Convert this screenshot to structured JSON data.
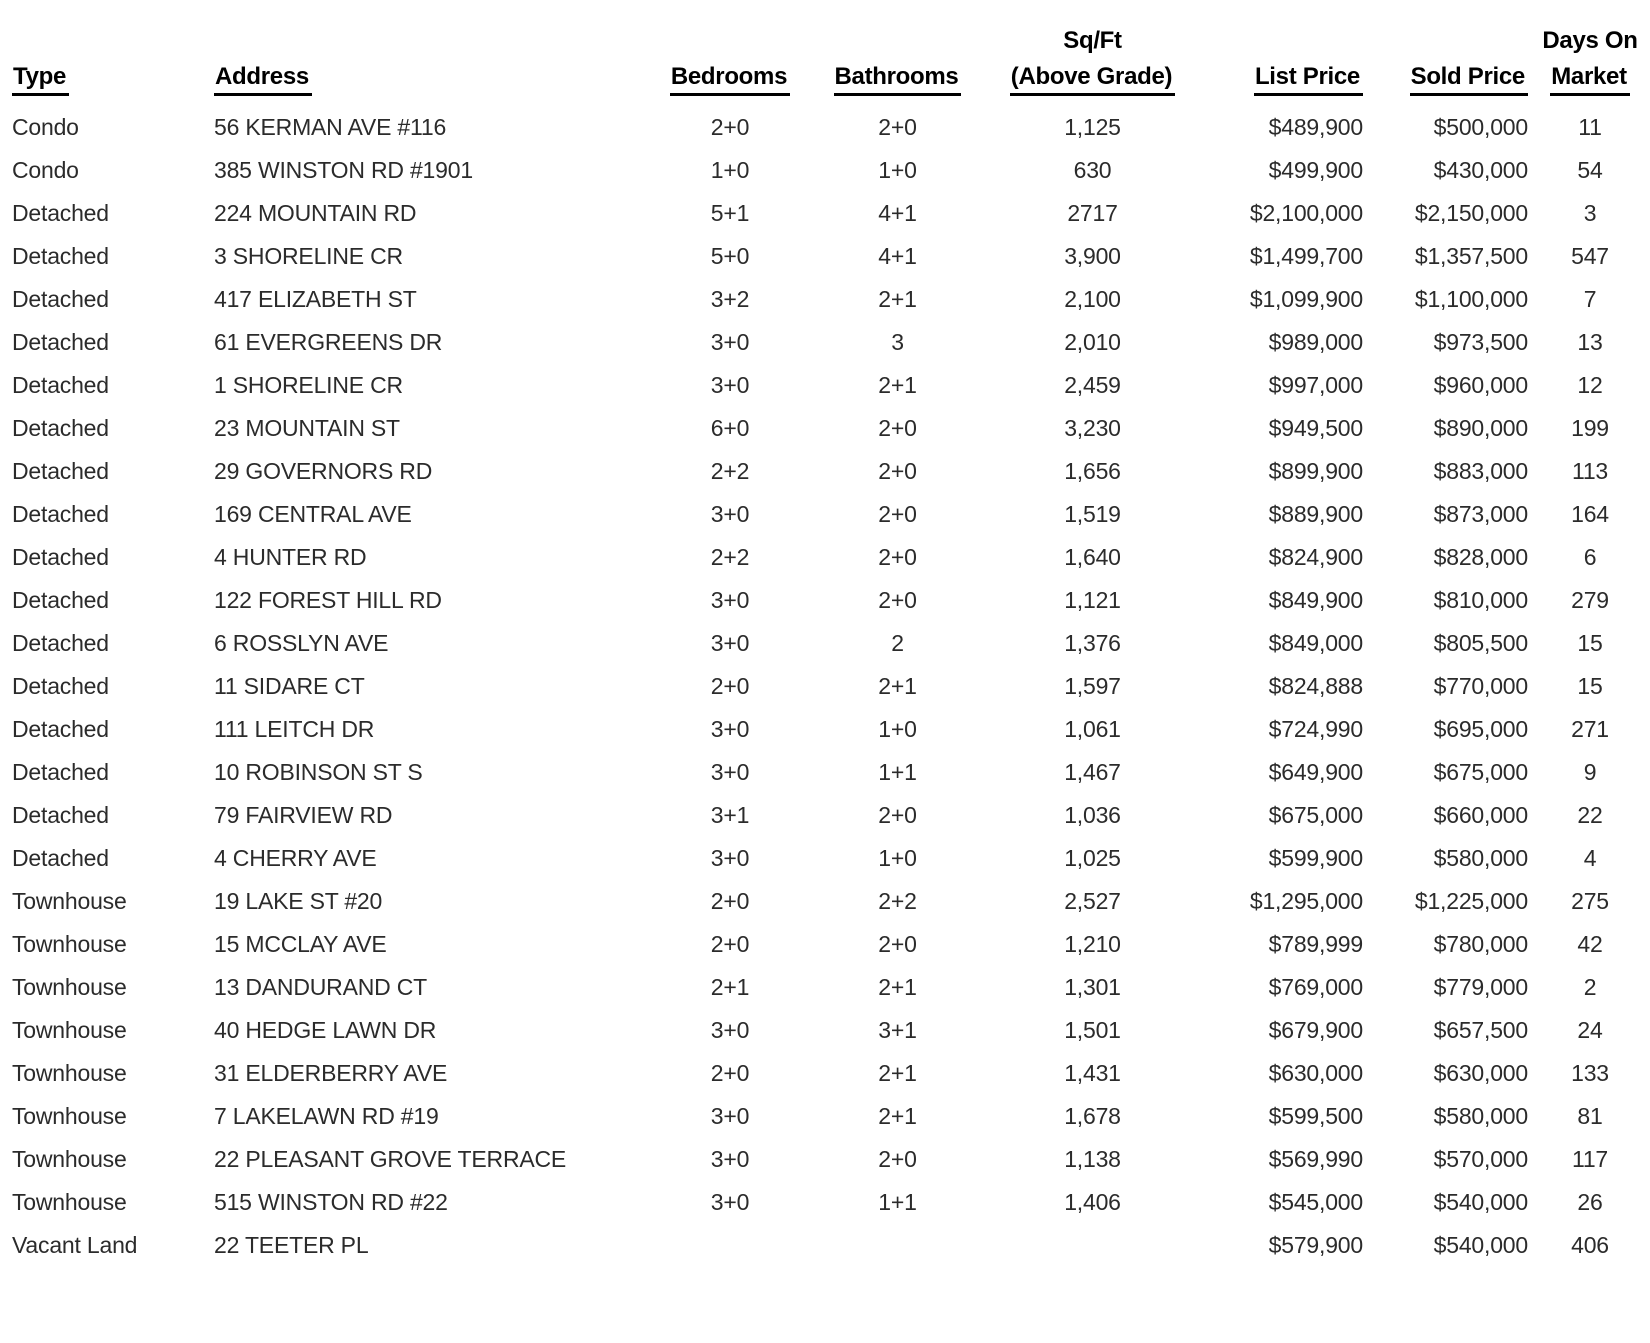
{
  "page": {
    "background_color": "#ffffff",
    "body_text_color": "#2b2b2b",
    "header_text_color": "#000000"
  },
  "table": {
    "columns": [
      {
        "top": "",
        "label": "Type"
      },
      {
        "top": "",
        "label": "Address"
      },
      {
        "top": "",
        "label": "Bedrooms"
      },
      {
        "top": "",
        "label": "Bathrooms"
      },
      {
        "top": "Sq/Ft",
        "label": "(Above Grade)"
      },
      {
        "top": "",
        "label": "List Price"
      },
      {
        "top": "",
        "label": "Sold Price"
      },
      {
        "top": "Days On",
        "label": "Market"
      }
    ],
    "rows": [
      [
        "Condo",
        "56 KERMAN AVE #116",
        "2+0",
        "2+0",
        "1,125",
        "$489,900",
        "$500,000",
        "11"
      ],
      [
        "Condo",
        "385 WINSTON RD #1901",
        "1+0",
        "1+0",
        "630",
        "$499,900",
        "$430,000",
        "54"
      ],
      [
        "Detached",
        "224 MOUNTAIN RD",
        "5+1",
        "4+1",
        "2717",
        "$2,100,000",
        "$2,150,000",
        "3"
      ],
      [
        "Detached",
        "3 SHORELINE CR",
        "5+0",
        "4+1",
        "3,900",
        "$1,499,700",
        "$1,357,500",
        "547"
      ],
      [
        "Detached",
        "417 ELIZABETH ST",
        "3+2",
        "2+1",
        "2,100",
        "$1,099,900",
        "$1,100,000",
        "7"
      ],
      [
        "Detached",
        "61 EVERGREENS DR",
        "3+0",
        "3",
        "2,010",
        "$989,000",
        "$973,500",
        "13"
      ],
      [
        "Detached",
        "1 SHORELINE CR",
        "3+0",
        "2+1",
        "2,459",
        "$997,000",
        "$960,000",
        "12"
      ],
      [
        "Detached",
        "23 MOUNTAIN ST",
        "6+0",
        "2+0",
        "3,230",
        "$949,500",
        "$890,000",
        "199"
      ],
      [
        "Detached",
        "29 GOVERNORS RD",
        "2+2",
        "2+0",
        "1,656",
        "$899,900",
        "$883,000",
        "113"
      ],
      [
        "Detached",
        "169 CENTRAL AVE",
        "3+0",
        "2+0",
        "1,519",
        "$889,900",
        "$873,000",
        "164"
      ],
      [
        "Detached",
        "4 HUNTER RD",
        "2+2",
        "2+0",
        "1,640",
        "$824,900",
        "$828,000",
        "6"
      ],
      [
        "Detached",
        "122 FOREST HILL RD",
        "3+0",
        "2+0",
        "1,121",
        "$849,900",
        "$810,000",
        "279"
      ],
      [
        "Detached",
        "6 ROSSLYN AVE",
        "3+0",
        "2",
        "1,376",
        "$849,000",
        "$805,500",
        "15"
      ],
      [
        "Detached",
        "11 SIDARE CT",
        "2+0",
        "2+1",
        "1,597",
        "$824,888",
        "$770,000",
        "15"
      ],
      [
        "Detached",
        "111 LEITCH DR",
        "3+0",
        "1+0",
        "1,061",
        "$724,990",
        "$695,000",
        "271"
      ],
      [
        "Detached",
        "10 ROBINSON ST S",
        "3+0",
        "1+1",
        "1,467",
        "$649,900",
        "$675,000",
        "9"
      ],
      [
        "Detached",
        "79 FAIRVIEW RD",
        "3+1",
        "2+0",
        "1,036",
        "$675,000",
        "$660,000",
        "22"
      ],
      [
        "Detached",
        "4 CHERRY AVE",
        "3+0",
        "1+0",
        "1,025",
        "$599,900",
        "$580,000",
        "4"
      ],
      [
        "Townhouse",
        "19 LAKE ST #20",
        "2+0",
        "2+2",
        "2,527",
        "$1,295,000",
        "$1,225,000",
        "275"
      ],
      [
        "Townhouse",
        "15 MCCLAY AVE",
        "2+0",
        "2+0",
        "1,210",
        "$789,999",
        "$780,000",
        "42"
      ],
      [
        "Townhouse",
        "13 DANDURAND CT",
        "2+1",
        "2+1",
        "1,301",
        "$769,000",
        "$779,000",
        "2"
      ],
      [
        "Townhouse",
        "40 HEDGE LAWN DR",
        "3+0",
        "3+1",
        "1,501",
        "$679,900",
        "$657,500",
        "24"
      ],
      [
        "Townhouse",
        "31 ELDERBERRY AVE",
        "2+0",
        "2+1",
        "1,431",
        "$630,000",
        "$630,000",
        "133"
      ],
      [
        "Townhouse",
        "7 LAKELAWN RD #19",
        "3+0",
        "2+1",
        "1,678",
        "$599,500",
        "$580,000",
        "81"
      ],
      [
        "Townhouse",
        "22 PLEASANT GROVE TERRACE",
        "3+0",
        "2+0",
        "1,138",
        "$569,990",
        "$570,000",
        "117"
      ],
      [
        "Townhouse",
        "515 WINSTON RD #22",
        "3+0",
        "1+1",
        "1,406",
        "$545,000",
        "$540,000",
        "26"
      ],
      [
        "Vacant Land",
        "22 TEETER PL",
        "",
        "",
        "",
        "$579,900",
        "$540,000",
        "406"
      ]
    ]
  }
}
